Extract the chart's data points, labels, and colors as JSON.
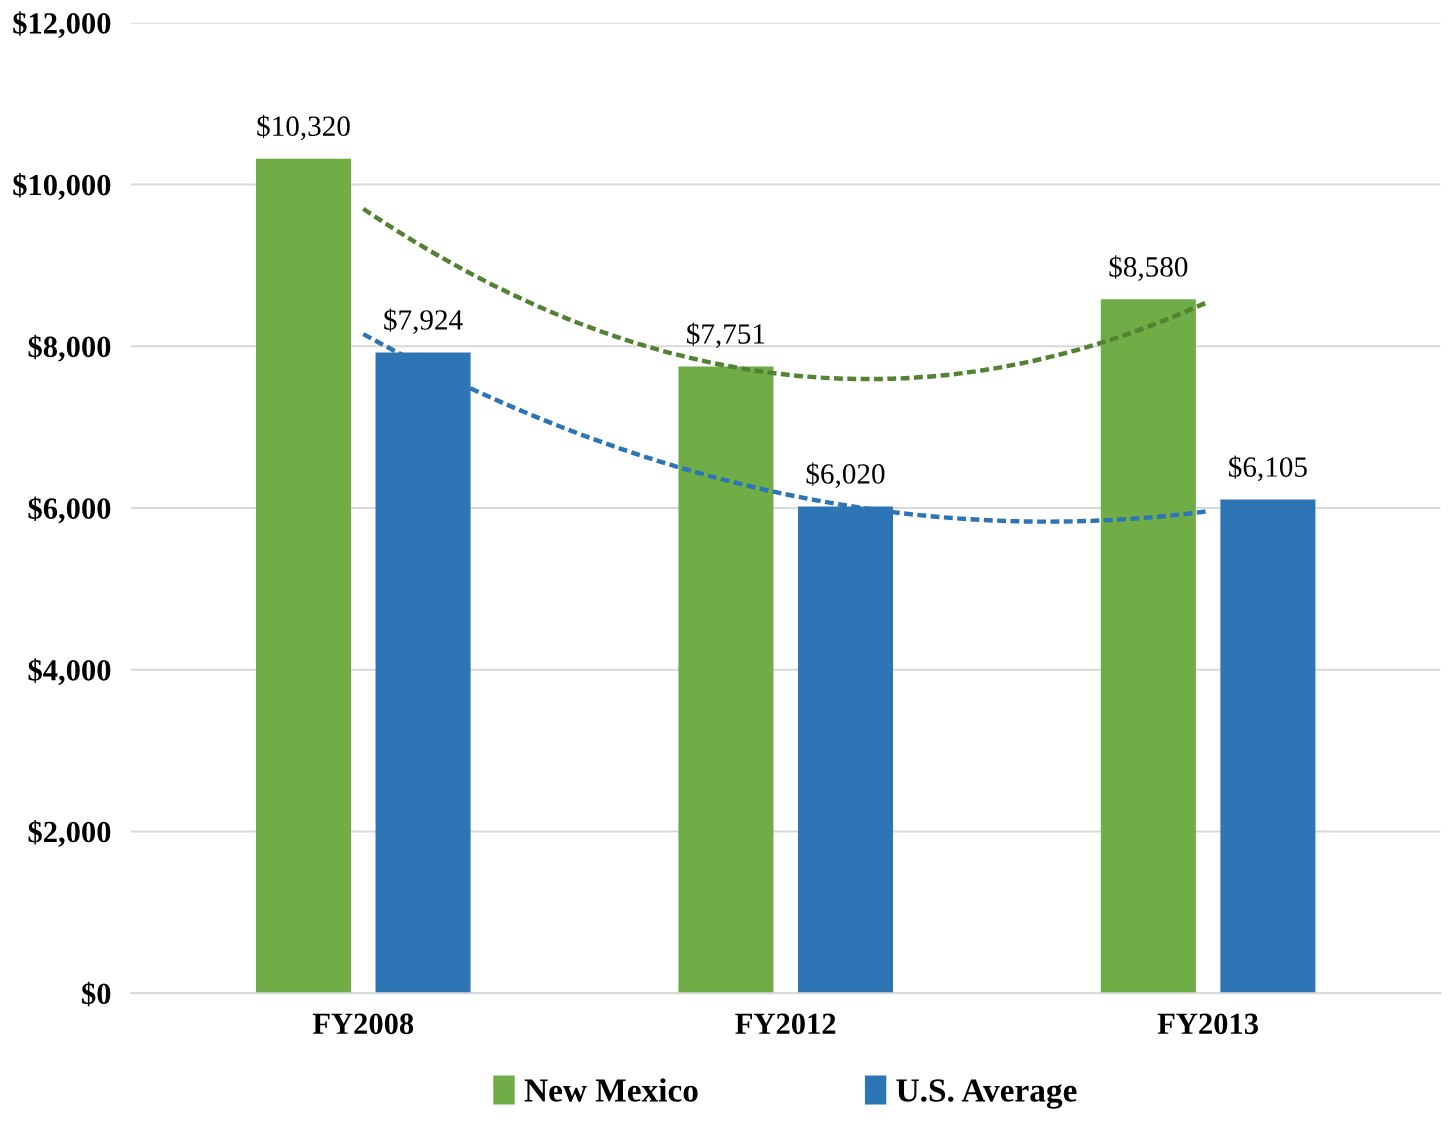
{
  "chart_data": {
    "type": "bar",
    "categories": [
      "FY2008",
      "FY2012",
      "FY2013"
    ],
    "series": [
      {
        "name": "New Mexico",
        "color": "#70ad47",
        "values": [
          10320,
          7751,
          8580
        ],
        "value_labels": [
          "$10,320",
          "$7,751",
          "$8,580"
        ]
      },
      {
        "name": "U.S. Average",
        "color": "#2e75b6",
        "values": [
          7924,
          6020,
          6105
        ],
        "value_labels": [
          "$7,924",
          "$6,020",
          "$6,105"
        ]
      },
      {
        "type": "line",
        "color": "#548235",
        "line_style": "dashed",
        "values": [
          9700,
          7650,
          8550
        ]
      },
      {
        "type": "line",
        "color": "#2e75b6",
        "line_style": "dashed",
        "values": [
          8150,
          6170,
          5960
        ]
      }
    ],
    "ylim": [
      0,
      12000
    ],
    "yticks": [
      {
        "value": 0,
        "label": "$0"
      },
      {
        "value": 2000,
        "label": "$2,000"
      },
      {
        "value": 4000,
        "label": "$4,000"
      },
      {
        "value": 6000,
        "label": "$6,000"
      },
      {
        "value": 8000,
        "label": "$8,000"
      },
      {
        "value": 10000,
        "label": "$10,000"
      },
      {
        "value": 12000,
        "label": "$12,000"
      }
    ],
    "grid": "y",
    "legend": "bottom"
  }
}
